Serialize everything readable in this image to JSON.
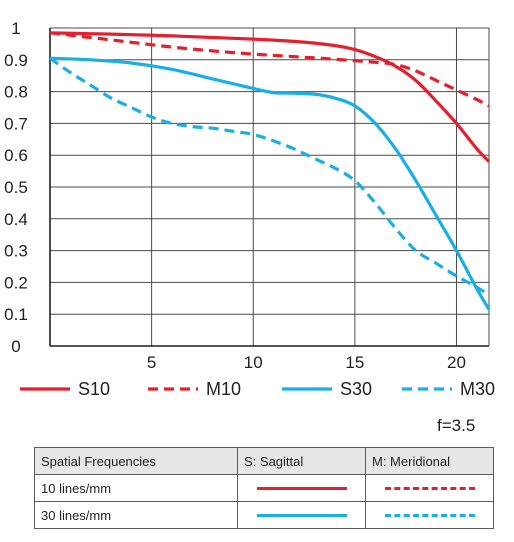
{
  "chart_data": {
    "type": "line",
    "title": "",
    "xlabel": "",
    "ylabel": "",
    "xlim": [
      0,
      21.6
    ],
    "ylim": [
      0,
      1
    ],
    "xticks": [
      5,
      10,
      15,
      20
    ],
    "yticks": [
      0,
      0.1,
      0.2,
      0.3,
      0.4,
      0.5,
      0.6,
      0.7,
      0.8,
      0.9,
      1
    ],
    "ytick_labels": [
      "0",
      "0.1",
      "0.2",
      "0.3",
      "0.4",
      "0.5",
      "0.6",
      "0.7",
      "0.8",
      "0.9",
      "1"
    ],
    "grid": true,
    "legend_position": "bottom",
    "series": [
      {
        "name": "S10",
        "color": "#e5202e",
        "dash": false,
        "x": [
          0,
          2,
          4,
          6,
          8,
          10,
          12,
          14,
          15,
          16,
          17,
          18,
          19,
          20,
          21,
          21.6
        ],
        "y": [
          0.985,
          0.982,
          0.979,
          0.975,
          0.97,
          0.965,
          0.958,
          0.945,
          0.932,
          0.91,
          0.88,
          0.835,
          0.77,
          0.7,
          0.62,
          0.58
        ]
      },
      {
        "name": "M10",
        "color": "#e5202e",
        "dash": true,
        "x": [
          0,
          2,
          4,
          6,
          8,
          10,
          12,
          14,
          16,
          17,
          18,
          19,
          20,
          21,
          21.6
        ],
        "y": [
          0.985,
          0.97,
          0.955,
          0.94,
          0.928,
          0.918,
          0.91,
          0.902,
          0.892,
          0.885,
          0.865,
          0.835,
          0.805,
          0.775,
          0.755
        ]
      },
      {
        "name": "S30",
        "color": "#19aee5",
        "dash": false,
        "x": [
          0,
          2,
          4,
          6,
          8,
          10,
          11,
          12,
          13,
          14,
          15,
          16,
          17,
          18,
          19,
          20,
          21,
          21.6
        ],
        "y": [
          0.905,
          0.9,
          0.89,
          0.87,
          0.84,
          0.81,
          0.797,
          0.795,
          0.792,
          0.78,
          0.755,
          0.7,
          0.62,
          0.52,
          0.41,
          0.3,
          0.18,
          0.115
        ]
      },
      {
        "name": "M30",
        "color": "#19aee5",
        "dash": true,
        "x": [
          0,
          1,
          2,
          3,
          4,
          5,
          6,
          7,
          8,
          9,
          10,
          11,
          12,
          13,
          14,
          15,
          16,
          17,
          18,
          19,
          20,
          21,
          21.6
        ],
        "y": [
          0.905,
          0.86,
          0.82,
          0.78,
          0.75,
          0.72,
          0.7,
          0.69,
          0.685,
          0.675,
          0.665,
          0.645,
          0.62,
          0.59,
          0.56,
          0.52,
          0.45,
          0.37,
          0.3,
          0.26,
          0.22,
          0.185,
          0.16
        ]
      }
    ]
  },
  "aperture_label": "f=3.5",
  "table": {
    "header": [
      "Spatial Frequencies",
      "S: Sagittal",
      "M: Meridional"
    ],
    "rows": [
      {
        "label": "10 lines/mm",
        "color": "#e5202e"
      },
      {
        "label": "30 lines/mm",
        "color": "#19aee5"
      }
    ]
  }
}
